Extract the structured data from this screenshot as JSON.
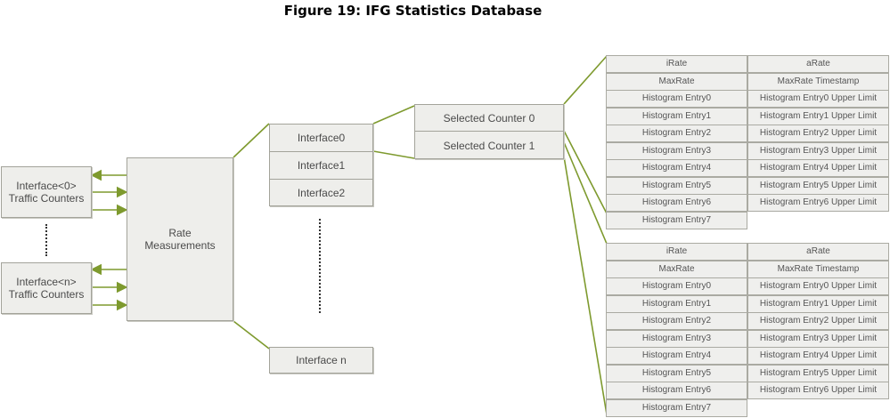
{
  "figure": {
    "title": "Figure 19: IFG Statistics Database"
  },
  "traffic_counters": [
    {
      "label": "Interface<0> Traffic Counters"
    },
    {
      "label": "Interface<n> Traffic Counters"
    }
  ],
  "rate_measurements": {
    "label": "Rate Measurements"
  },
  "interfaces": [
    "Interface0",
    "Interface1",
    "Interface2"
  ],
  "interface_n": "Interface n",
  "selected_counters": [
    "Selected Counter 0",
    "Selected Counter 1"
  ],
  "rate_table": {
    "left_col": [
      "iRate",
      "MaxRate",
      "Histogram Entry0",
      "Histogram Entry1",
      "Histogram Entry2",
      "Histogram Entry3",
      "Histogram Entry4",
      "Histogram Entry5",
      "Histogram Entry6",
      "Histogram Entry7"
    ],
    "right_col": [
      "aRate",
      "MaxRate Timestamp",
      "Histogram Entry0 Upper Limit",
      "Histogram Entry1 Upper Limit",
      "Histogram Entry2 Upper Limit",
      "Histogram Entry3 Upper Limit",
      "Histogram Entry4 Upper Limit",
      "Histogram Entry5 Upper Limit",
      "Histogram Entry6 Upper Limit"
    ]
  },
  "colors": {
    "connector": "#7e9a2e",
    "box_fill": "#eeeeeb",
    "box_border": "#a3a39a"
  }
}
